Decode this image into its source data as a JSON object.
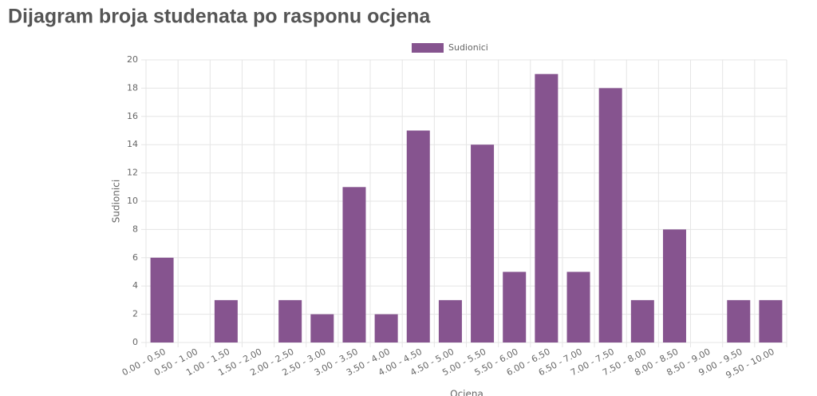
{
  "chart_data": {
    "type": "bar",
    "title": "Dijagram broja studenata po rasponu ocjena",
    "categories": [
      "0.00 - 0.50",
      "0.50 - 1.00",
      "1.00 - 1.50",
      "1.50 - 2.00",
      "2.00 - 2.50",
      "2.50 - 3.00",
      "3.00 - 3.50",
      "3.50 - 4.00",
      "4.00 - 4.50",
      "4.50 - 5.00",
      "5.00 - 5.50",
      "5.50 - 6.00",
      "6.00 - 6.50",
      "6.50 - 7.00",
      "7.00 - 7.50",
      "7.50 - 8.00",
      "8.00 - 8.50",
      "8.50 - 9.00",
      "9.00 - 9.50",
      "9.50 - 10.00"
    ],
    "series": [
      {
        "name": "Sudionici",
        "color": "#86548f",
        "values": [
          6,
          0,
          3,
          0,
          3,
          2,
          11,
          2,
          15,
          3,
          14,
          5,
          19,
          5,
          18,
          3,
          8,
          0,
          3,
          3
        ]
      }
    ],
    "x_label": "Ocjena",
    "y_label": "Sudionici",
    "ylim": [
      0,
      20
    ],
    "yticks": [
      0,
      2,
      4,
      6,
      8,
      10,
      12,
      14,
      16,
      18,
      20
    ],
    "grid": true,
    "legend": "top"
  }
}
